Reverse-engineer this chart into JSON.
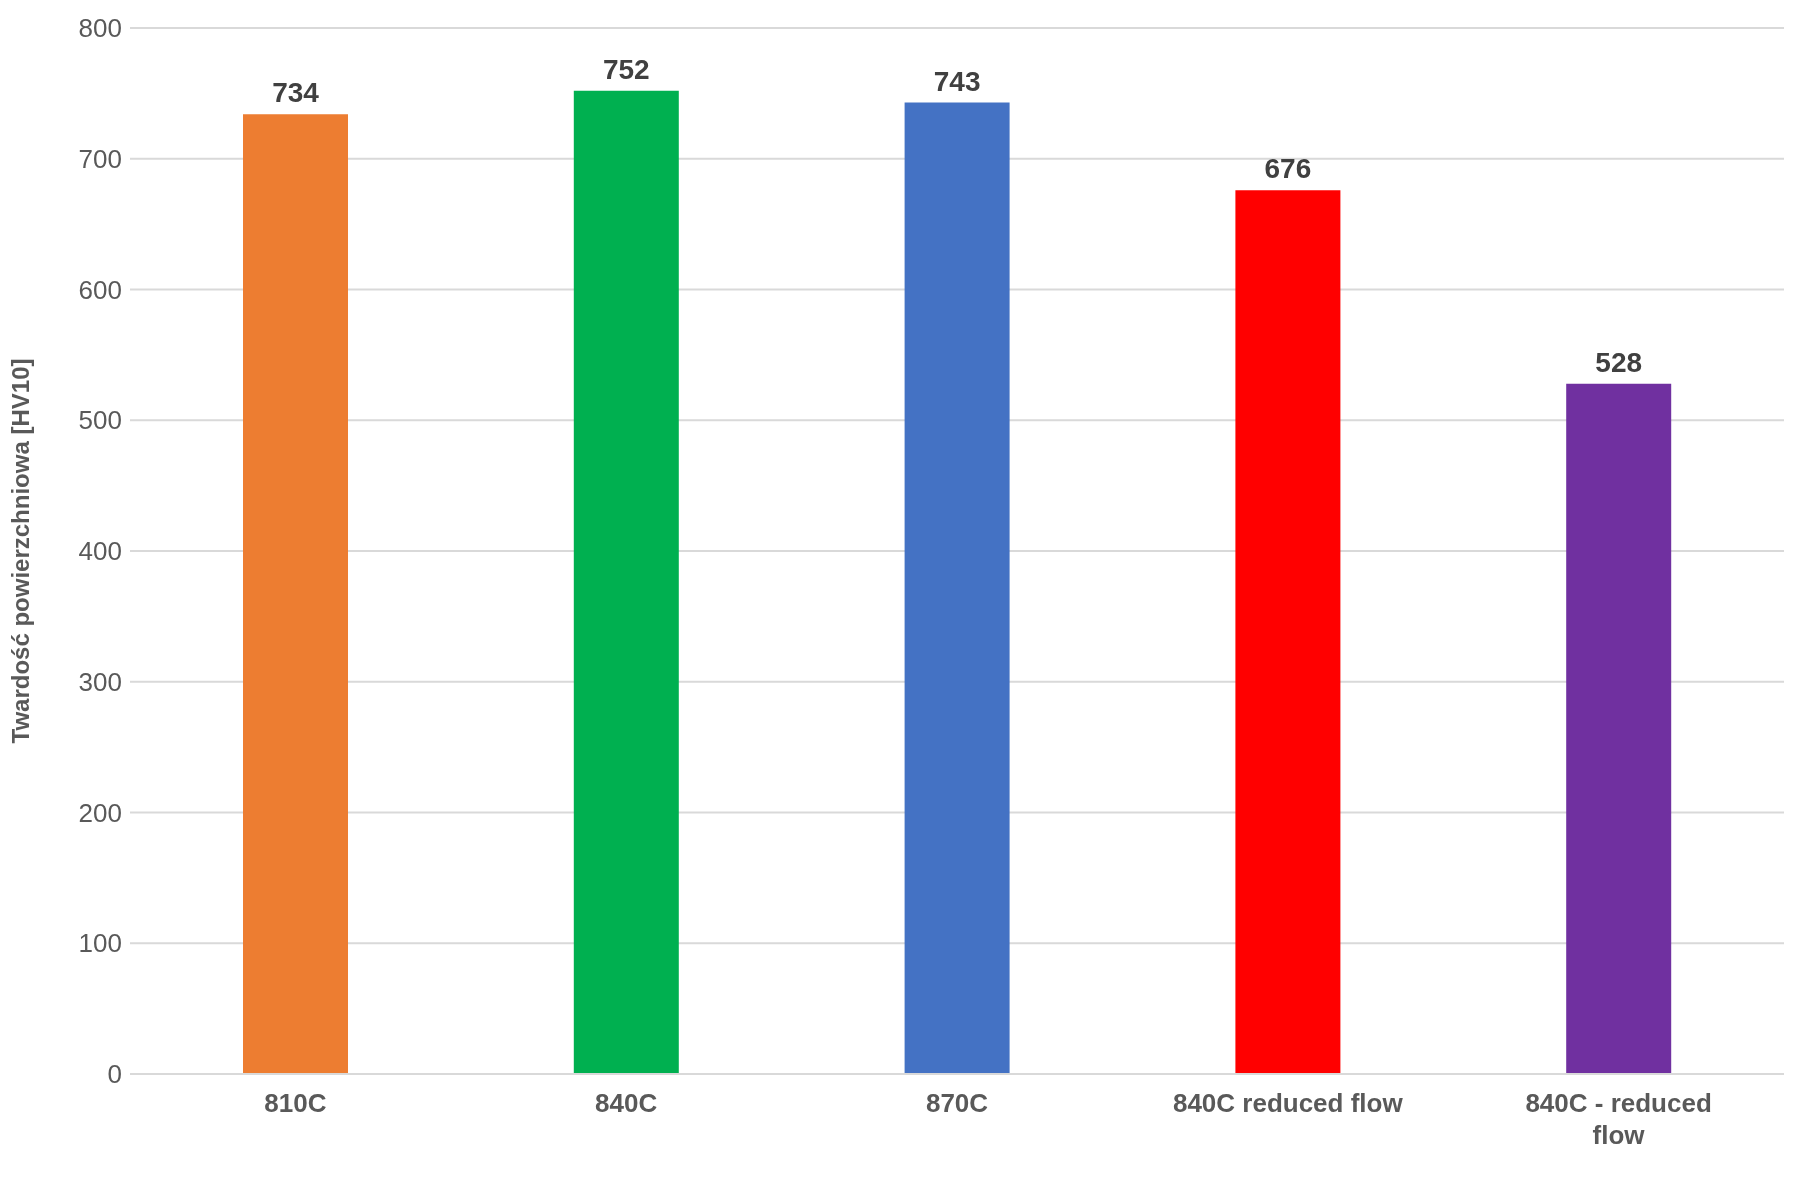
{
  "chart_data": {
    "type": "bar",
    "ylabel": "Twardość powierzchniowa [HV10]",
    "categories": [
      "810C",
      "840C",
      "870C",
      "840C reduced flow",
      "840C - reduced flow"
    ],
    "values": [
      734,
      752,
      743,
      676,
      528
    ],
    "colors": [
      "#ed7d31",
      "#00b050",
      "#4472c4",
      "#ff0000",
      "#7030a0"
    ],
    "ylim": [
      0,
      800
    ],
    "yticks": [
      0,
      100,
      200,
      300,
      400,
      500,
      600,
      700,
      800
    ],
    "grid": "y",
    "data_labels": true
  }
}
